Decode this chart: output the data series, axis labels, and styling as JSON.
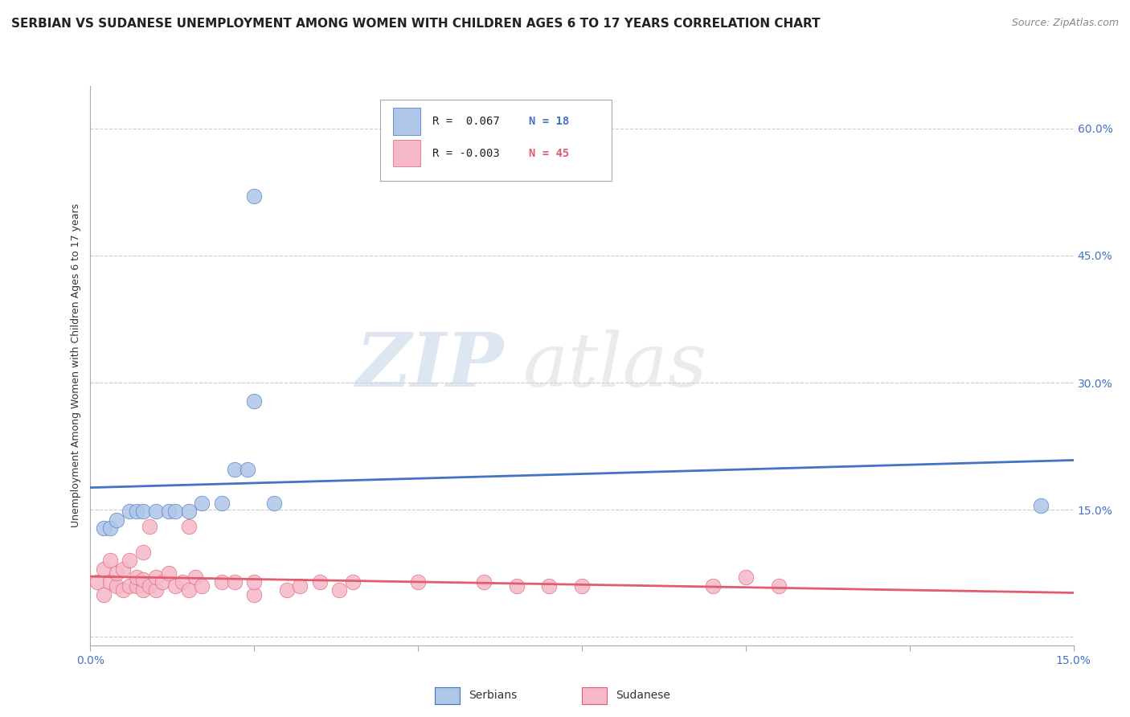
{
  "title": "SERBIAN VS SUDANESE UNEMPLOYMENT AMONG WOMEN WITH CHILDREN AGES 6 TO 17 YEARS CORRELATION CHART",
  "source": "Source: ZipAtlas.com",
  "ylabel": "Unemployment Among Women with Children Ages 6 to 17 years",
  "xlim": [
    0.0,
    0.15
  ],
  "ylim": [
    -0.01,
    0.65
  ],
  "yticks": [
    0.0,
    0.15,
    0.3,
    0.45,
    0.6
  ],
  "ytick_labels": [
    "",
    "15.0%",
    "30.0%",
    "45.0%",
    "60.0%"
  ],
  "xtick_vals": [
    0.0,
    0.025,
    0.05,
    0.075,
    0.1,
    0.125,
    0.15
  ],
  "xtick_labels": [
    "0.0%",
    "",
    "",
    "",
    "",
    "",
    "15.0%"
  ],
  "legend_r_serbian": "R =  0.067",
  "legend_n_serbian": "N = 18",
  "legend_r_sudanese": "R = -0.003",
  "legend_n_sudanese": "N = 45",
  "serbian_color": "#aec6e8",
  "sudanese_color": "#f5b8c8",
  "serbian_line_color": "#4472c4",
  "sudanese_line_color": "#e05c6e",
  "watermark_zip": "ZIP",
  "watermark_atlas": "atlas",
  "serbian_points": [
    [
      0.002,
      0.128
    ],
    [
      0.003,
      0.128
    ],
    [
      0.004,
      0.138
    ],
    [
      0.006,
      0.148
    ],
    [
      0.007,
      0.148
    ],
    [
      0.008,
      0.148
    ],
    [
      0.01,
      0.148
    ],
    [
      0.012,
      0.148
    ],
    [
      0.013,
      0.148
    ],
    [
      0.015,
      0.148
    ],
    [
      0.017,
      0.158
    ],
    [
      0.02,
      0.158
    ],
    [
      0.022,
      0.198
    ],
    [
      0.024,
      0.198
    ],
    [
      0.025,
      0.278
    ],
    [
      0.025,
      0.52
    ],
    [
      0.028,
      0.158
    ],
    [
      0.145,
      0.155
    ]
  ],
  "sudanese_points": [
    [
      0.001,
      0.065
    ],
    [
      0.002,
      0.05
    ],
    [
      0.002,
      0.08
    ],
    [
      0.003,
      0.065
    ],
    [
      0.003,
      0.09
    ],
    [
      0.004,
      0.06
    ],
    [
      0.004,
      0.075
    ],
    [
      0.005,
      0.055
    ],
    [
      0.005,
      0.08
    ],
    [
      0.006,
      0.06
    ],
    [
      0.006,
      0.09
    ],
    [
      0.007,
      0.06
    ],
    [
      0.007,
      0.07
    ],
    [
      0.008,
      0.055
    ],
    [
      0.008,
      0.068
    ],
    [
      0.008,
      0.1
    ],
    [
      0.009,
      0.06
    ],
    [
      0.009,
      0.13
    ],
    [
      0.01,
      0.055
    ],
    [
      0.01,
      0.07
    ],
    [
      0.011,
      0.065
    ],
    [
      0.012,
      0.075
    ],
    [
      0.013,
      0.06
    ],
    [
      0.014,
      0.065
    ],
    [
      0.015,
      0.055
    ],
    [
      0.015,
      0.13
    ],
    [
      0.016,
      0.07
    ],
    [
      0.017,
      0.06
    ],
    [
      0.02,
      0.065
    ],
    [
      0.022,
      0.065
    ],
    [
      0.025,
      0.05
    ],
    [
      0.025,
      0.065
    ],
    [
      0.03,
      0.055
    ],
    [
      0.032,
      0.06
    ],
    [
      0.035,
      0.065
    ],
    [
      0.038,
      0.055
    ],
    [
      0.04,
      0.065
    ],
    [
      0.05,
      0.065
    ],
    [
      0.06,
      0.065
    ],
    [
      0.065,
      0.06
    ],
    [
      0.07,
      0.06
    ],
    [
      0.075,
      0.06
    ],
    [
      0.095,
      0.06
    ],
    [
      0.1,
      0.07
    ],
    [
      0.105,
      0.06
    ]
  ],
  "title_fontsize": 11,
  "source_fontsize": 9,
  "axis_label_fontsize": 9,
  "tick_fontsize": 10,
  "background_color": "#ffffff",
  "grid_color": "#cccccc"
}
